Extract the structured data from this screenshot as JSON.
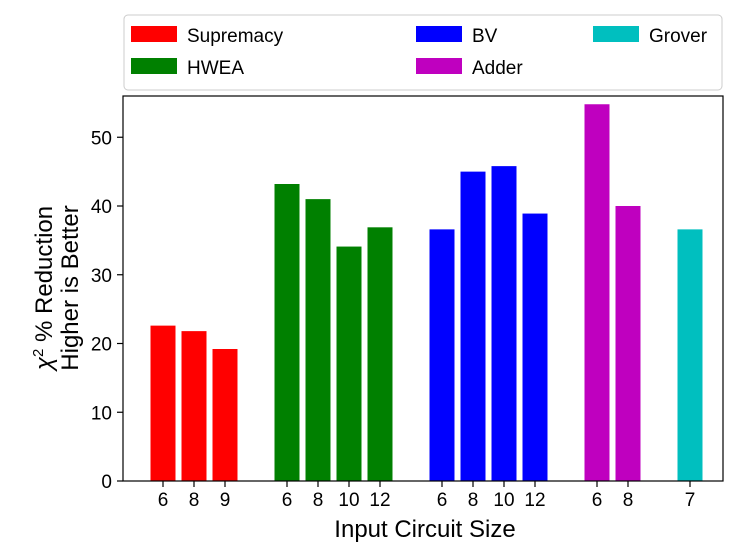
{
  "chart_data": {
    "type": "bar",
    "xlabel": "Input Circuit Size",
    "ylabel_line1_prefix": "χ",
    "ylabel_line1_sup": "2",
    "ylabel_line1_suffix": " % Reduction",
    "ylabel_line2": "Higher is Better",
    "ylim": [
      0,
      56
    ],
    "yticks": [
      0,
      10,
      20,
      30,
      40,
      50
    ],
    "grid": false,
    "legend_position": "top",
    "groups": [
      {
        "name": "Supremacy",
        "color": "#ff0000",
        "categories": [
          "6",
          "8",
          "9"
        ],
        "values": [
          22.6,
          21.8,
          19.2
        ]
      },
      {
        "name": "HWEA",
        "color": "#008000",
        "categories": [
          "6",
          "8",
          "10",
          "12"
        ],
        "values": [
          43.2,
          41.0,
          34.1,
          36.9
        ]
      },
      {
        "name": "BV",
        "color": "#0000ff",
        "categories": [
          "6",
          "8",
          "10",
          "12"
        ],
        "values": [
          36.6,
          45.0,
          45.8,
          38.9
        ]
      },
      {
        "name": "Adder",
        "color": "#bf00bf",
        "categories": [
          "6",
          "8"
        ],
        "values": [
          54.8,
          40.0
        ]
      },
      {
        "name": "Grover",
        "color": "#00bfbf",
        "categories": [
          "7"
        ],
        "values": [
          36.6
        ]
      }
    ]
  }
}
